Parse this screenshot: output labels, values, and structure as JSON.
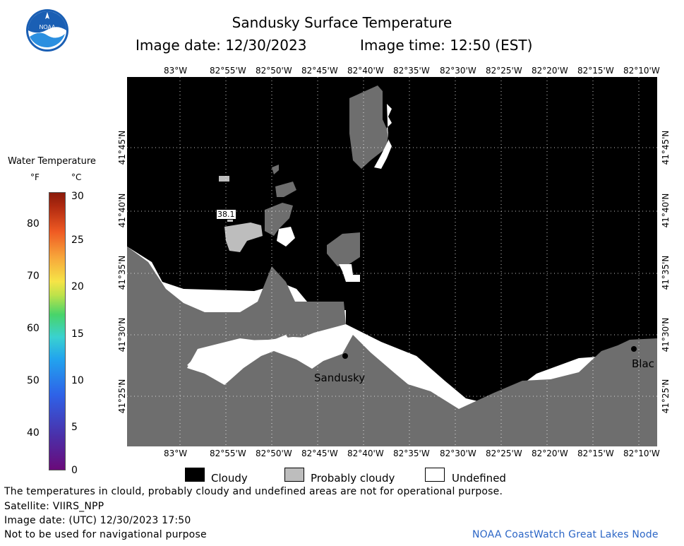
{
  "header": {
    "title": "Sandusky Surface Temperature",
    "image_date": "Image date: 12/30/2023",
    "image_time": "Image time: 12:50 (EST)"
  },
  "logo": {
    "icon": "noaa-logo-icon",
    "text": "NOAA"
  },
  "legend": {
    "title": "Water Temperature",
    "unit_f": "°F",
    "unit_c": "°C",
    "f_ticks": [
      "80",
      "70",
      "60",
      "50",
      "40"
    ],
    "c_ticks": [
      "30",
      "25",
      "20",
      "15",
      "10",
      "5",
      "0"
    ]
  },
  "map": {
    "lon_labels": [
      "83°W",
      "82°55'W",
      "82°50'W",
      "82°45'W",
      "82°40'W",
      "82°35'W",
      "82°30'W",
      "82°25'W",
      "82°20'W",
      "82°15'W",
      "82°10'W"
    ],
    "lat_labels": [
      "41°45'N",
      "41°40'N",
      "41°35'N",
      "41°30'N",
      "41°25'N"
    ],
    "temperature_label": "38.1",
    "city_sandusky": "Sandusky",
    "city_partial": "Blac",
    "colors": {
      "cloudy": "#000000",
      "land": "#6e6e6e",
      "probably_cloudy": "#bdbdbd",
      "undefined": "#ffffff"
    }
  },
  "key": {
    "cloudy": "Cloudy",
    "probably_cloudy": "Probably cloudy",
    "undefined": "Undefined"
  },
  "footer": {
    "disclaimer": "The temperatures in clould, probably cloudy and undefined areas are not for operational purpose.",
    "satellite": "Satellite: VIIRS_NPP",
    "utc_date": "Image date: (UTC) 12/30/2023  17:50",
    "nav_warning": "Not to be used for navigational purpose",
    "credit": "NOAA CoastWatch Great Lakes Node"
  }
}
